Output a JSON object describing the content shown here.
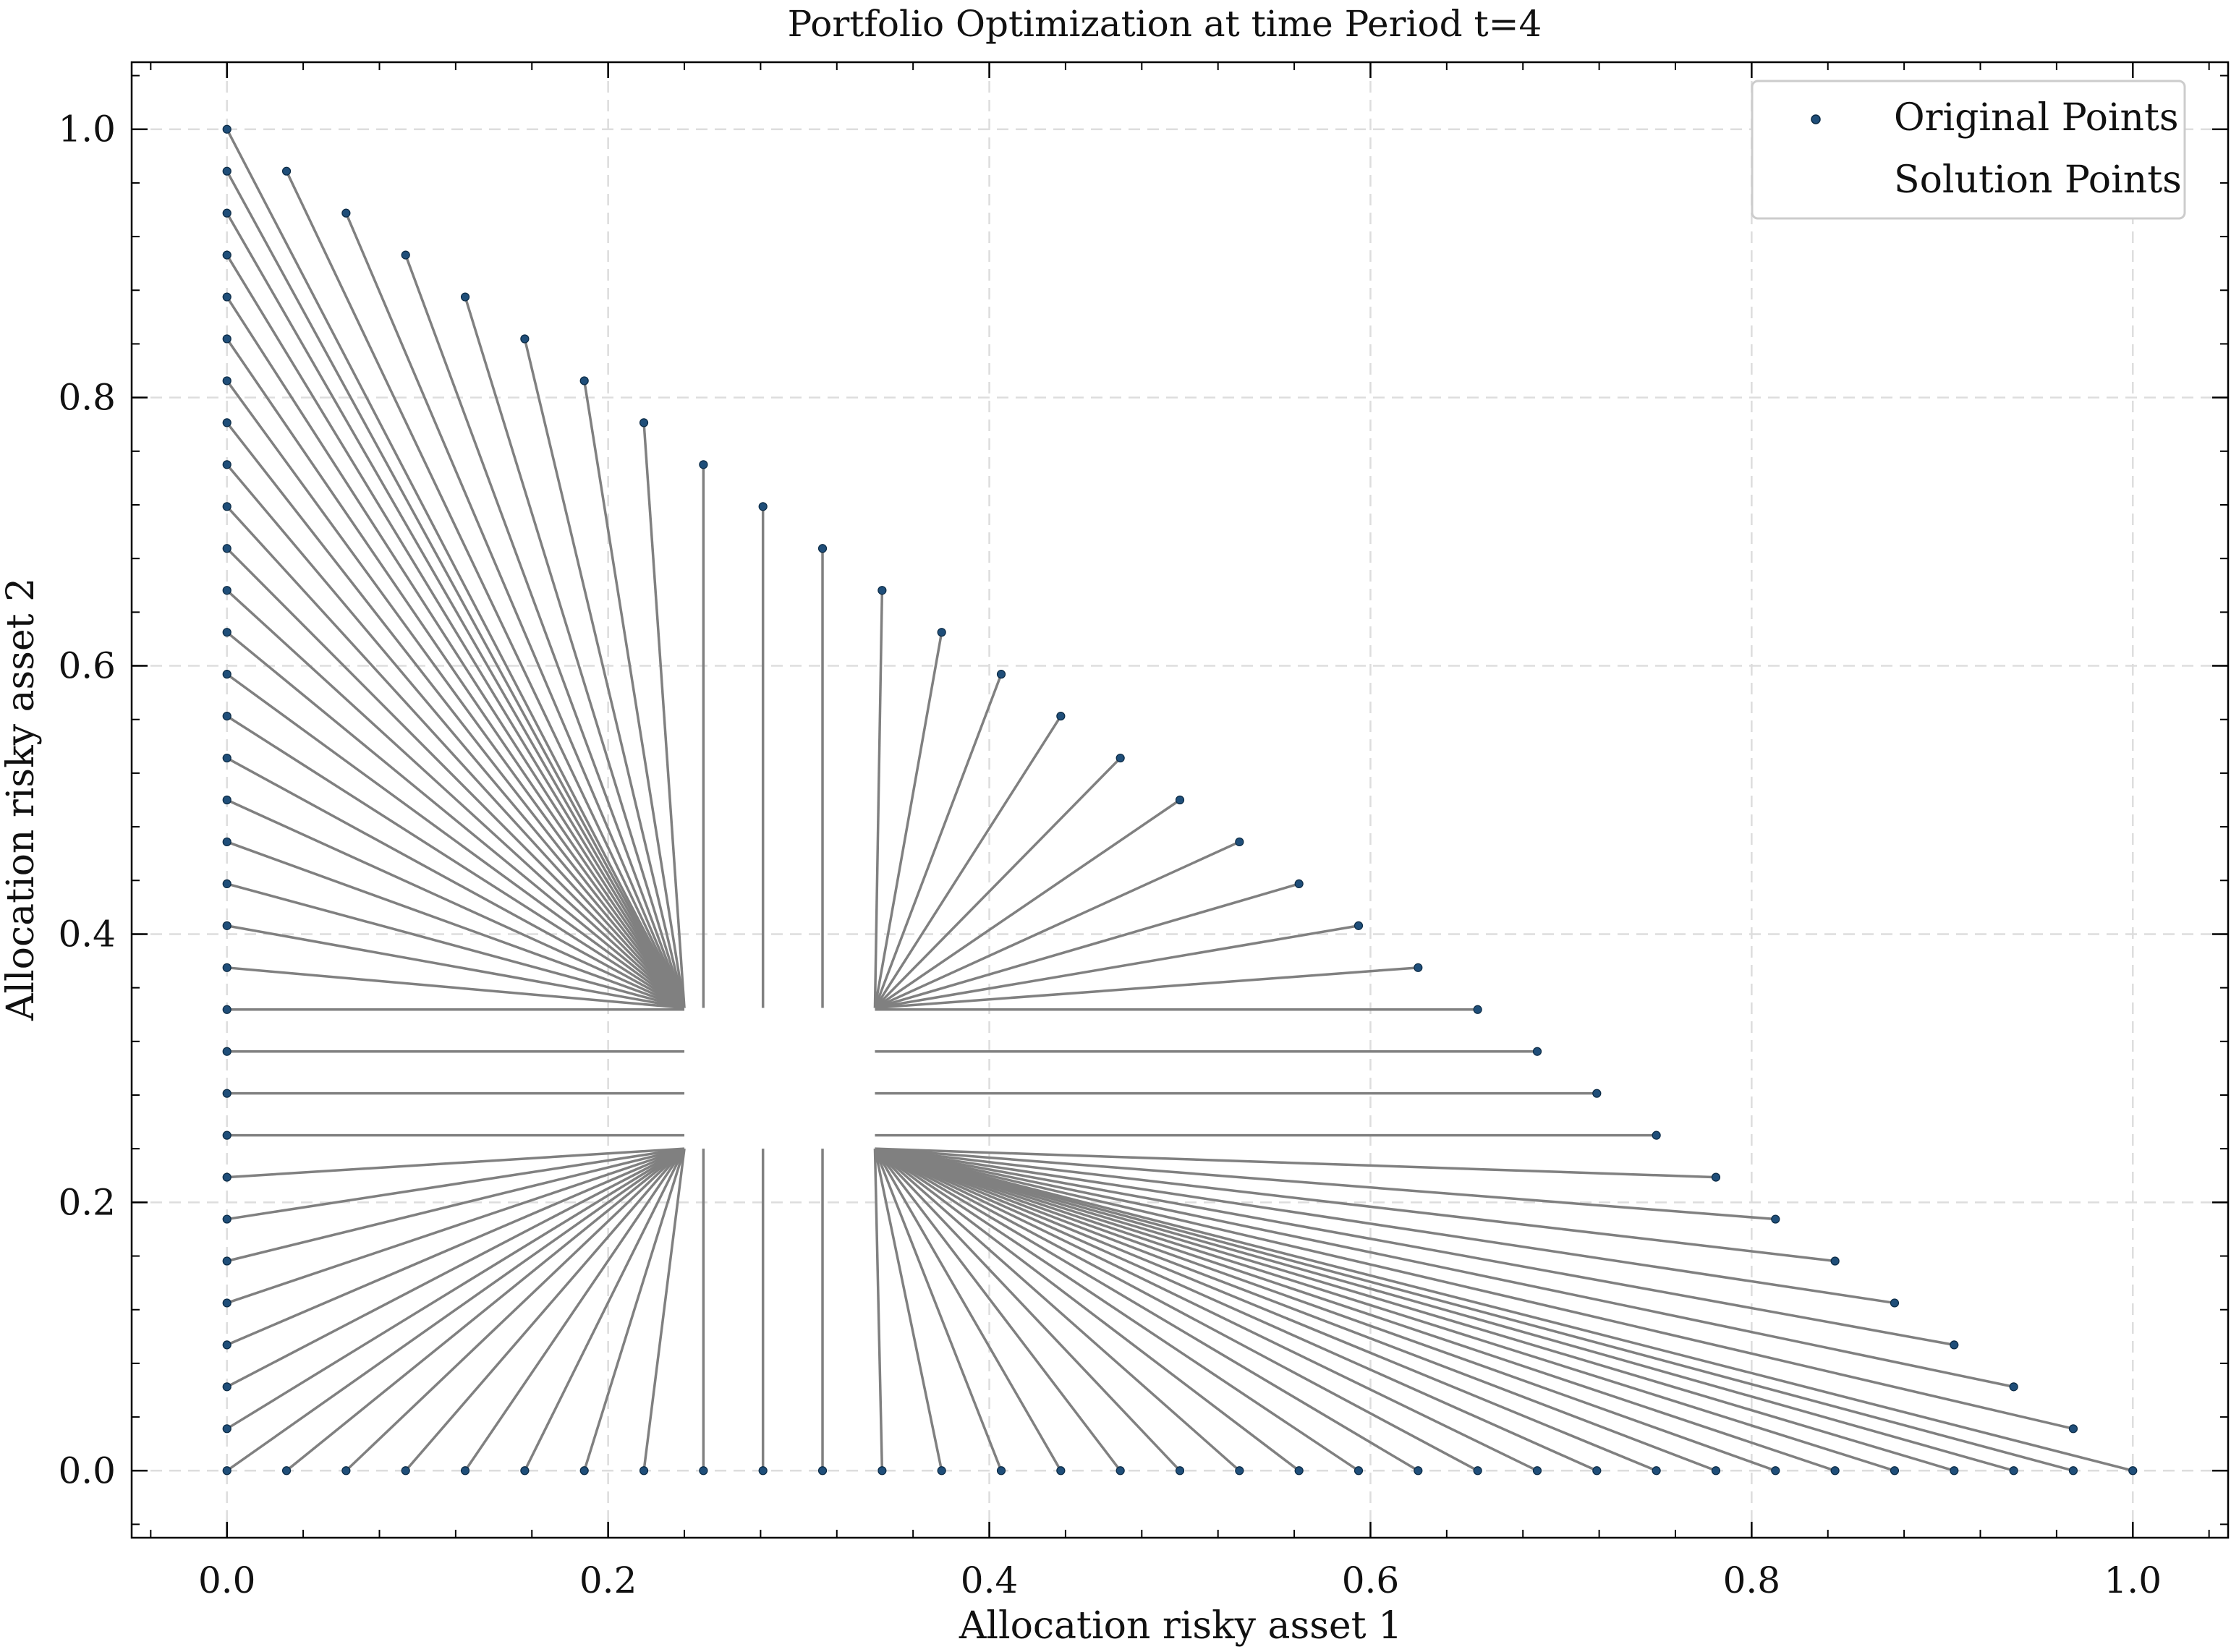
{
  "chart_data": {
    "type": "scatter",
    "title": "Portfolio Optimization at time Period t=4",
    "xlabel": "Allocation risky asset 1",
    "ylabel": "Allocation risky asset 2",
    "xlim": [
      -0.05,
      1.05
    ],
    "ylim": [
      -0.05,
      1.05
    ],
    "xticks": [
      "0.0",
      "0.2",
      "0.4",
      "0.6",
      "0.8",
      "1.0"
    ],
    "yticks": [
      "0.0",
      "0.2",
      "0.4",
      "0.6",
      "0.8",
      "1.0"
    ],
    "grid": true,
    "legend_position": "top-right",
    "grid_step": 0.03125,
    "solution_region": {
      "x_bounds": [
        0.24,
        0.34
      ],
      "y_bounds": [
        0.24,
        0.345
      ]
    },
    "series": [
      {
        "name": "Original Points",
        "color": "#1f4e79",
        "description_points": "grid of (x, y) with x >= 0, y >= 0, x + y = 1 on the hypotenuse plus points on both axes"
      },
      {
        "name": "Solution Points",
        "color": "#808080"
      }
    ]
  }
}
